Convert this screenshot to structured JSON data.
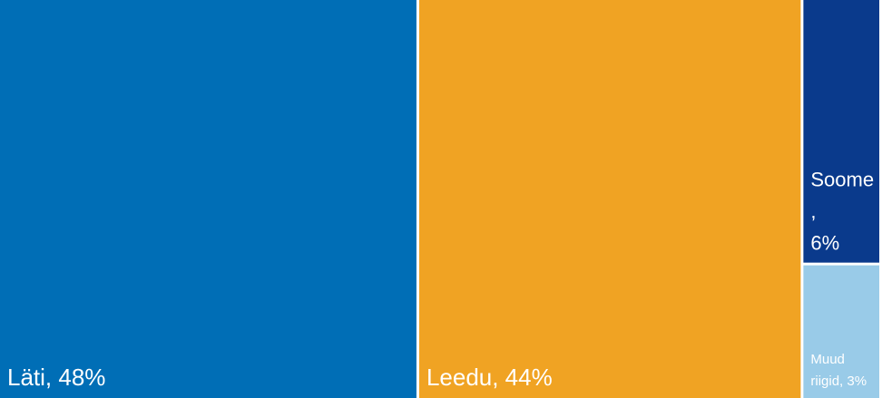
{
  "chart_data": {
    "type": "treemap",
    "labels": [
      "Läti, 48%",
      "Leedu, 44%",
      "Soome, 6%",
      "Muud riigid, 3%"
    ],
    "values": [
      48,
      44,
      6,
      3
    ],
    "colors": [
      "#006eb6",
      "#f0a323",
      "#0a3a8c",
      "#99cbe8"
    ]
  }
}
